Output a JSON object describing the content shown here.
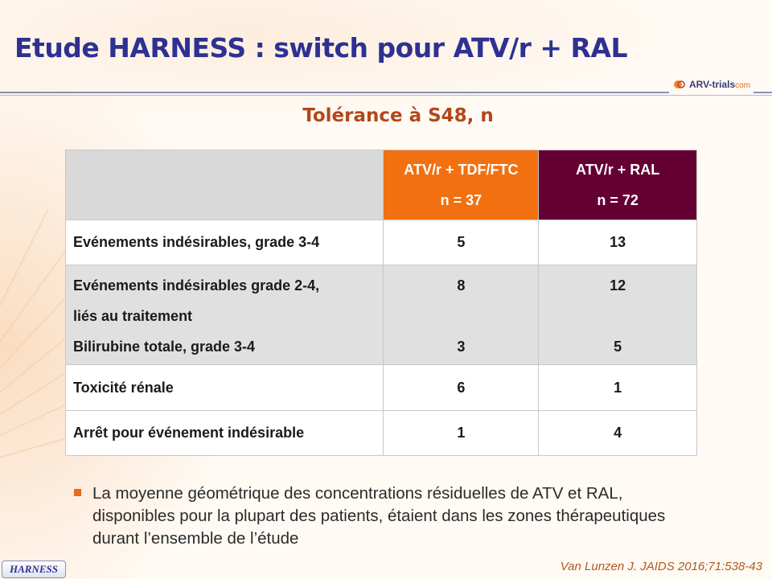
{
  "slide": {
    "title": "Etude HARNESS : switch pour ATV/r + RAL",
    "subtitle": "Tolérance à S48, n",
    "logo": {
      "main": "ARV-trials",
      "suffix": "com"
    }
  },
  "table": {
    "columns": [
      {
        "name": "ATV/r + TDF/FTC",
        "n": "n = 37",
        "color": "#f2700f"
      },
      {
        "name": "ATV/r + RAL",
        "n": "n = 72",
        "color": "#640032"
      }
    ],
    "rows": [
      {
        "label": "Evénements indésirables, grade 3-4",
        "a": "5",
        "b": "13"
      },
      {
        "label_lines": [
          "Evénements indésirables grade 2-4,",
          "liés au traitement",
          "Bilirubine totale, grade 3-4"
        ],
        "a": [
          "8",
          "",
          "3"
        ],
        "b": [
          "12",
          "",
          "5"
        ]
      },
      {
        "label": "Toxicité rénale",
        "a": "6",
        "b": "1"
      },
      {
        "label": "Arrêt pour événement indésirable",
        "a": "1",
        "b": "4"
      }
    ]
  },
  "bullet": "La moyenne géométrique des concentrations résiduelles de ATV et RAL, disponibles pour la plupart des patients, étaient dans les zones thérapeutiques durant l’ensemble de l’étude",
  "footer": {
    "tag": "HARNESS",
    "reference": "Van Lunzen J. JAIDS 2016;71:538-43"
  },
  "colors": {
    "title": "#2e3192",
    "subtitle": "#b3471b",
    "accent": "#e8681c"
  }
}
